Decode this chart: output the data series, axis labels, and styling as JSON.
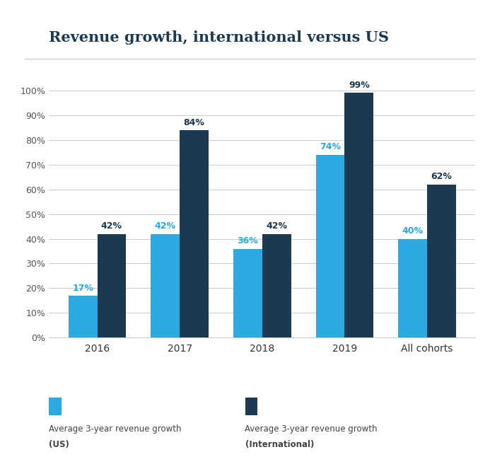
{
  "title": "Revenue growth, international versus US",
  "categories": [
    "2016",
    "2017",
    "2018",
    "2019",
    "All cohorts"
  ],
  "us_values": [
    17,
    42,
    36,
    74,
    40
  ],
  "intl_values": [
    42,
    84,
    42,
    99,
    62
  ],
  "us_color": "#29ABE2",
  "intl_color": "#1B3A52",
  "ylim": [
    0,
    110
  ],
  "yticks": [
    0,
    10,
    20,
    30,
    40,
    50,
    60,
    70,
    80,
    90,
    100
  ],
  "ytick_labels": [
    "0%",
    "10%",
    "20%",
    "30%",
    "40%",
    "50%",
    "60%",
    "70%",
    "80%",
    "90%",
    "100%"
  ],
  "legend_us_label1": "Average 3-year revenue growth",
  "legend_us_label2": "(US)",
  "legend_intl_label1": "Average 3-year revenue growth",
  "legend_intl_label2": "(International)",
  "bar_width": 0.35,
  "title_fontsize": 15,
  "tick_fontsize": 9,
  "annotation_fontsize": 9,
  "background_color": "#FFFFFF",
  "title_color": "#1B3A52",
  "grid_color": "#cccccc"
}
